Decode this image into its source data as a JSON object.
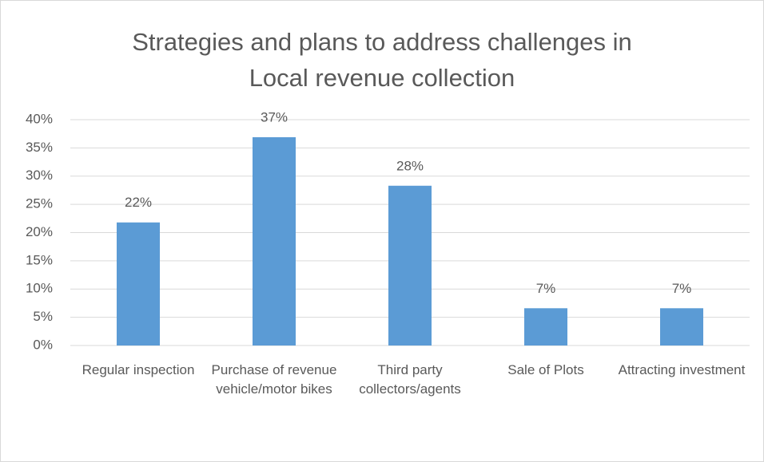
{
  "chart_data": {
    "type": "bar",
    "title": "Strategies and plans to address challenges in Local revenue collection",
    "categories": [
      "Regular inspection",
      "Purchase of revenue vehicle/motor bikes",
      "Third party collectors/agents",
      "Sale of Plots",
      "Attracting investment"
    ],
    "values": [
      21.8,
      36.9,
      28.3,
      6.6,
      6.6
    ],
    "value_labels": [
      "22%",
      "37%",
      "28%",
      "7%",
      "7%"
    ],
    "color": "#5b9bd5",
    "ylim": [
      0,
      40
    ],
    "yticks": [
      {
        "value": 0,
        "label": "0%"
      },
      {
        "value": 5,
        "label": "5%"
      },
      {
        "value": 10,
        "label": "10%"
      },
      {
        "value": 15,
        "label": "15%"
      },
      {
        "value": 20,
        "label": "20%"
      },
      {
        "value": 25,
        "label": "25%"
      },
      {
        "value": 30,
        "label": "30%"
      },
      {
        "value": 35,
        "label": "35%"
      },
      {
        "value": 40,
        "label": "40%"
      }
    ],
    "grid": true
  }
}
